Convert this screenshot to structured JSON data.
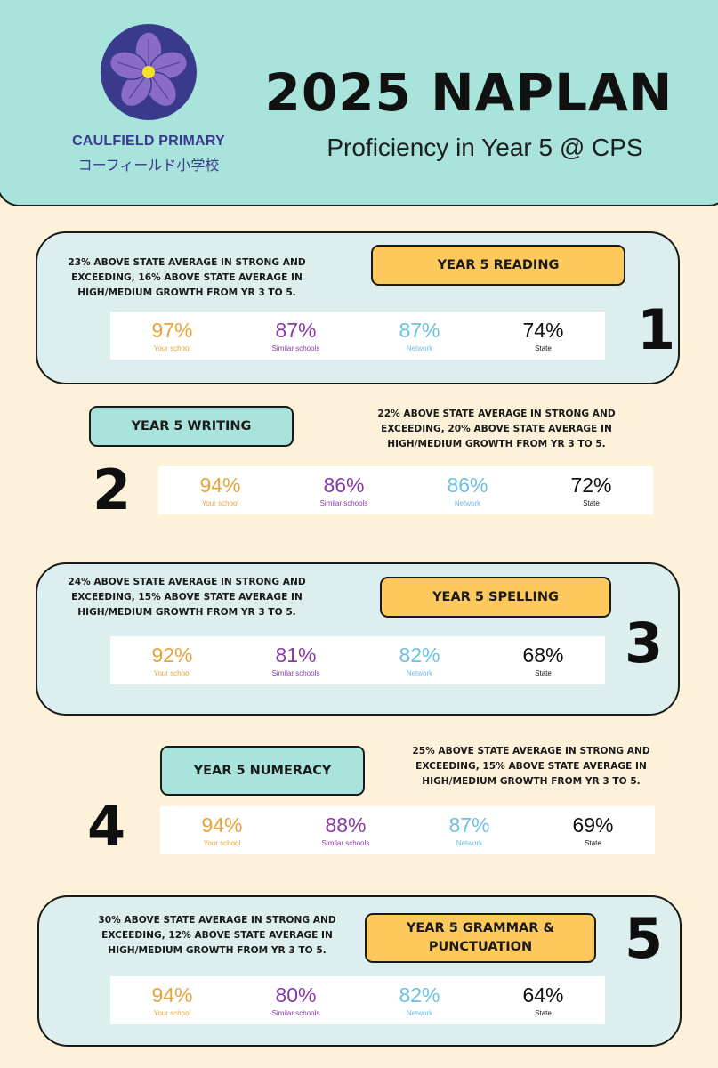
{
  "header": {
    "school_name": "CAULFIELD PRIMARY",
    "school_name_jp": "コーフィールド小学校",
    "title": "2025 NAPLAN",
    "subtitle": "Proficiency in Year 5 @ CPS",
    "logo_icon": "purple-flower-icon"
  },
  "colors": {
    "header_bg": "#a8e4dc",
    "page_bg": "#fdf1d9",
    "card_bg": "#dcefee",
    "pill_yellow": "#fdc85c",
    "pill_teal": "#a8e4dc",
    "your_school": "#e8a43a",
    "similar_schools": "#8a3aa8",
    "network": "#6cc0e3",
    "state": "#111111"
  },
  "sections": [
    {
      "number": "1",
      "title": "YEAR 5 READING",
      "description": "23% ABOVE STATE AVERAGE IN STRONG AND EXCEEDING, 16% ABOVE STATE AVERAGE IN HIGH/MEDIUM GROWTH FROM YR 3 TO 5.",
      "stats": [
        {
          "value": "97%",
          "label": "Your school"
        },
        {
          "value": "87%",
          "label": "Similar schools"
        },
        {
          "value": "87%",
          "label": "Network"
        },
        {
          "value": "74%",
          "label": "State"
        }
      ]
    },
    {
      "number": "2",
      "title": "YEAR 5 WRITING",
      "description": "22% ABOVE STATE AVERAGE IN STRONG AND EXCEEDING, 20% ABOVE STATE AVERAGE IN HIGH/MEDIUM GROWTH FROM YR 3 TO 5.",
      "stats": [
        {
          "value": "94%",
          "label": "Your school"
        },
        {
          "value": "86%",
          "label": "Similar schools"
        },
        {
          "value": "86%",
          "label": "Network"
        },
        {
          "value": "72%",
          "label": "State"
        }
      ]
    },
    {
      "number": "3",
      "title": "YEAR 5 SPELLING",
      "description": "24% ABOVE STATE AVERAGE IN STRONG AND EXCEEDING, 15% ABOVE STATE AVERAGE IN HIGH/MEDIUM GROWTH FROM YR 3 TO 5.",
      "stats": [
        {
          "value": "92%",
          "label": "Your school"
        },
        {
          "value": "81%",
          "label": "Similar schools"
        },
        {
          "value": "82%",
          "label": "Network"
        },
        {
          "value": "68%",
          "label": "State"
        }
      ]
    },
    {
      "number": "4",
      "title": "YEAR 5 NUMERACY",
      "description": "25% ABOVE STATE AVERAGE IN STRONG AND EXCEEDING, 15% ABOVE STATE AVERAGE IN HIGH/MEDIUM GROWTH FROM YR 3 TO 5.",
      "stats": [
        {
          "value": "94%",
          "label": "Your school"
        },
        {
          "value": "88%",
          "label": "Similar schools"
        },
        {
          "value": "87%",
          "label": "Network"
        },
        {
          "value": "69%",
          "label": "State"
        }
      ]
    },
    {
      "number": "5",
      "title": "YEAR 5 GRAMMAR & PUNCTUATION",
      "description": "30% ABOVE STATE AVERAGE IN STRONG AND EXCEEDING, 12% ABOVE STATE AVERAGE IN HIGH/MEDIUM GROWTH FROM YR 3 TO 5.",
      "stats": [
        {
          "value": "94%",
          "label": "Your school"
        },
        {
          "value": "80%",
          "label": "Similar schools"
        },
        {
          "value": "82%",
          "label": "Network"
        },
        {
          "value": "64%",
          "label": "State"
        }
      ]
    }
  ]
}
